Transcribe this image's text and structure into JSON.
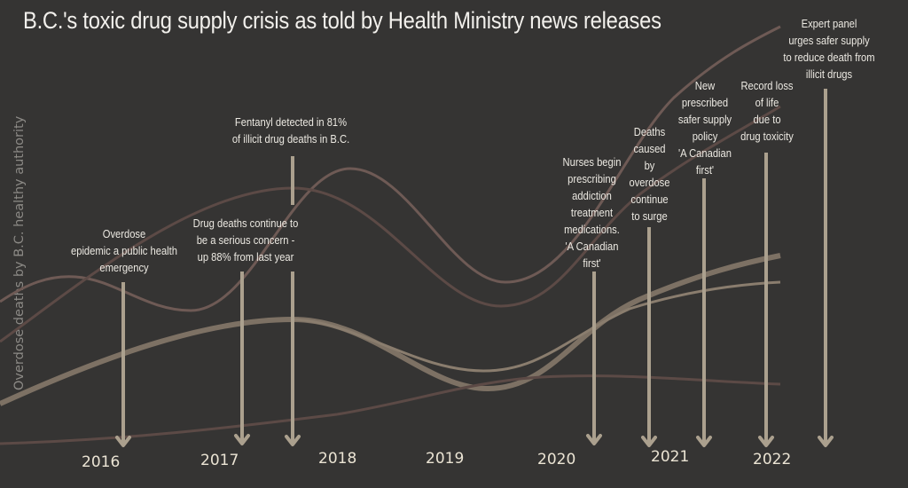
{
  "title": "B.C.'s toxic drug supply crisis as told by Health Ministry news releases",
  "y_axis_label": "Overdose deaths by B.C. healthy authority",
  "colors": {
    "background": "#353433",
    "arrow": "#aba08e",
    "curve_light": "#8a7d6e",
    "curve_pink": "#6e5a55",
    "text": "#ece9e2"
  },
  "years": [
    "2016",
    "2017",
    "2018",
    "2019",
    "2020",
    "2021",
    "2022"
  ],
  "annotations": [
    {
      "text": "Overdose\nepidemic a public health\nemergency",
      "year": "2016"
    },
    {
      "text": "Drug deaths  continue to\nbe a serious concern -\nup 88% from last year",
      "year": "2017"
    },
    {
      "text": "Fentanyl detected in 81%\nof illicit drug deaths in B.C.",
      "year": "2017"
    },
    {
      "text": "Nurses begin\nprescribing\naddiction\ntreatment\nmedications.\n'A Canadian\nfirst'",
      "year": "2020"
    },
    {
      "text": "Deaths\ncaused\nby\noverdose\ncontinue\nto surge",
      "year": "2021"
    },
    {
      "text": "New\nprescribed\nsafer supply\npolicy\n'A Canadian\nfirst'",
      "year": "2021"
    },
    {
      "text": "Record loss\nof life\ndue to\ndrug toxicity",
      "year": "2022"
    },
    {
      "text": "Expert panel\nurges safer supply\nto reduce death from\nillicit drugs",
      "year": "2022"
    }
  ],
  "series_count": 5
}
